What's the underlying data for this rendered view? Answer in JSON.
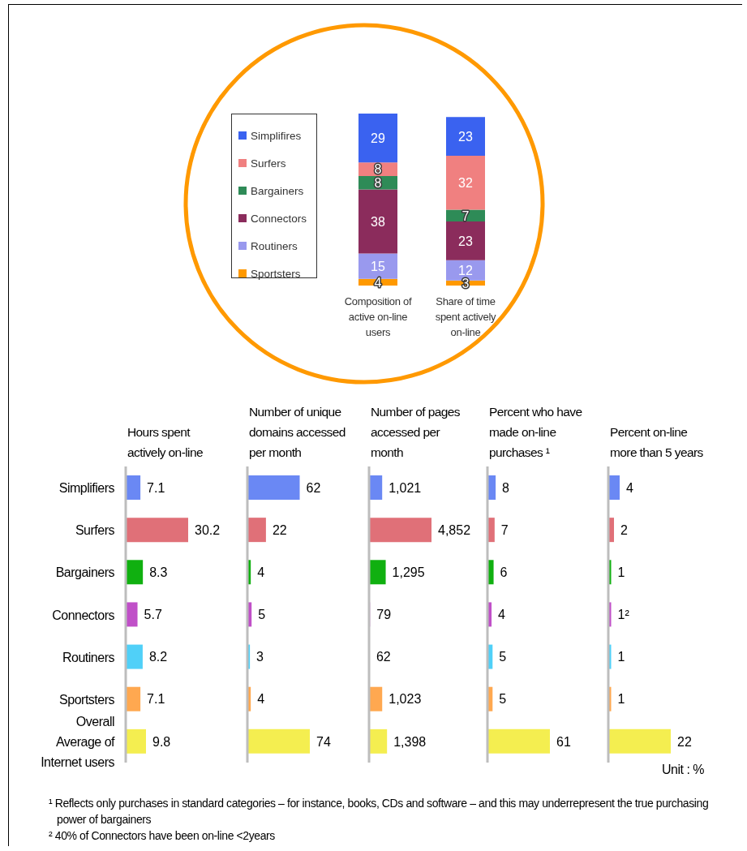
{
  "chart_data": [
    {
      "type": "bar",
      "stacked": true,
      "categories": [
        "Composition of active on-line users",
        "Share of time spent actively on-line"
      ],
      "series": [
        {
          "name": "Sportsters",
          "color": "#ff9900",
          "values": [
            4,
            3
          ]
        },
        {
          "name": "Routiners",
          "color": "#9999ee",
          "values": [
            15,
            12
          ]
        },
        {
          "name": "Connectors",
          "color": "#8b2c5c",
          "values": [
            38,
            23
          ]
        },
        {
          "name": "Bargainers",
          "color": "#2e8b57",
          "values": [
            8,
            7
          ]
        },
        {
          "name": "Surfers",
          "color": "#f08080",
          "values": [
            8,
            32
          ]
        },
        {
          "name": "Simplifires",
          "color": "#3a62f0",
          "values": [
            29,
            23
          ]
        }
      ],
      "data_labels": true,
      "legend": "left",
      "tick_labels": "x"
    },
    {
      "type": "bar",
      "orientation": "horizontal",
      "title": "Hours spent actively on-line",
      "categories": [
        "Simplifiers",
        "Surfers",
        "Bargainers",
        "Connectors",
        "Routiners",
        "Sportsters",
        "Overall Average of Internet users"
      ],
      "values": [
        7.1,
        30.2,
        8.3,
        5.7,
        8.2,
        7.1,
        9.8
      ],
      "colors": [
        "#6a88f4",
        "#e07078",
        "#10b010",
        "#c050c8",
        "#50d0f8",
        "#ffa850",
        "#f4ee50"
      ],
      "data_labels": true,
      "tick_labels": "y"
    },
    {
      "type": "bar",
      "orientation": "horizontal",
      "title": "Number of unique domains accessed per month",
      "categories": [
        null,
        null,
        null,
        null,
        null,
        null,
        null
      ],
      "values": [
        62,
        22,
        4,
        5,
        3,
        4,
        74
      ],
      "colors": [
        "#6a88f4",
        "#e07078",
        "#10b010",
        "#c050c8",
        "#50d0f8",
        "#ffa850",
        "#f4ee50"
      ],
      "data_labels": true,
      "tick_labels": false
    },
    {
      "type": "bar",
      "orientation": "horizontal",
      "title": "Number of pages accessed per month",
      "categories": [
        null,
        null,
        null,
        null,
        null,
        null,
        null
      ],
      "values": [
        1021,
        4852,
        1295,
        79,
        62,
        1023,
        1398
      ],
      "value_labels": [
        "1,021",
        "4,852",
        "1,295",
        "79",
        "62",
        "1,023",
        "1,398"
      ],
      "colors": [
        "#6a88f4",
        "#e07078",
        "#10b010",
        "#c050c8",
        "#50d0f8",
        "#ffa850",
        "#f4ee50"
      ],
      "tick_labels": false
    },
    {
      "type": "bar",
      "orientation": "horizontal",
      "title": "Percent who have made on-line purchases ¹",
      "categories": [
        null,
        null,
        null,
        null,
        null,
        null,
        null
      ],
      "values": [
        8,
        7,
        6,
        4,
        5,
        5,
        61
      ],
      "colors": [
        "#6a88f4",
        "#e07078",
        "#10b010",
        "#c050c8",
        "#50d0f8",
        "#ffa850",
        "#f4ee50"
      ],
      "data_labels": true,
      "tick_labels": false
    },
    {
      "type": "bar",
      "orientation": "horizontal",
      "title": "Percent on-line more than 5 years",
      "categories": [
        null,
        null,
        null,
        null,
        null,
        null,
        null
      ],
      "values": [
        4,
        2,
        1,
        1,
        1,
        1,
        22
      ],
      "value_labels": [
        "4",
        "2",
        "1",
        "1²",
        "1",
        "1",
        "22"
      ],
      "colors": [
        "#6a88f4",
        "#e07078",
        "#10b010",
        "#c050c8",
        "#50d0f8",
        "#ffa850",
        "#f4ee50"
      ],
      "tick_labels": false,
      "annotations": [
        "Unit : %",
        "¹ Reflects only purchases in standard categories – for instance, books, CDs and software – and this may underrepresent the true purchasing power of bargainers",
        "² 40% of Connectors have been on-line <2years"
      ]
    }
  ]
}
